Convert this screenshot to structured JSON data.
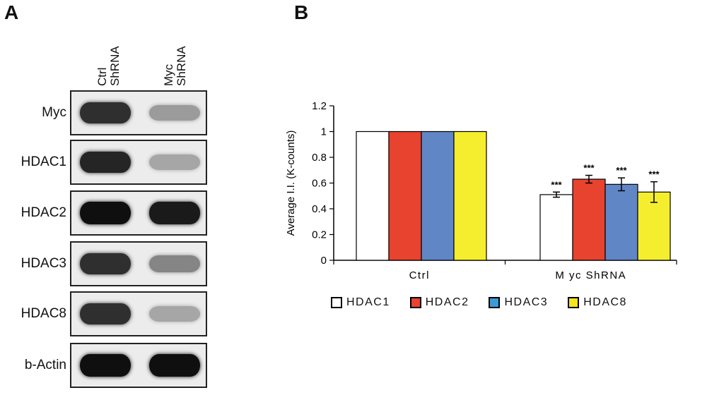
{
  "panelA": {
    "letter": "A",
    "columns": [
      {
        "line1": "Ctrl",
        "line2": "ShRNA"
      },
      {
        "line1": "Myc",
        "line2": "ShRNA"
      }
    ],
    "rows": [
      {
        "label": "Myc",
        "bands": [
          0.85,
          0.35
        ]
      },
      {
        "label": "HDAC1",
        "bands": [
          0.9,
          0.3
        ]
      },
      {
        "label": "HDAC2",
        "bands": [
          1.0,
          0.95
        ]
      },
      {
        "label": "HDAC3",
        "bands": [
          0.85,
          0.45
        ]
      },
      {
        "label": "HDAC8",
        "bands": [
          0.85,
          0.3
        ]
      },
      {
        "label": "b-Actin",
        "bands": [
          1.0,
          1.0
        ]
      }
    ]
  },
  "panelB": {
    "letter": "B",
    "legend": [
      {
        "label": "HDAC1",
        "color": "#ffffff"
      },
      {
        "label": "HDAC2",
        "color": "#e8432f"
      },
      {
        "label": "HDAC3",
        "color": "#3c9ad6"
      },
      {
        "label": "HDAC8",
        "color": "#f5e61e"
      }
    ]
  },
  "chart_data": {
    "type": "bar",
    "categories": [
      "Ctrl",
      "M yc ShRNA"
    ],
    "series": [
      {
        "name": "HDAC1",
        "values": [
          1,
          0.51
        ],
        "errors": [
          0,
          0.02
        ],
        "color": "#ffffff"
      },
      {
        "name": "HDAC2",
        "values": [
          1,
          0.63
        ],
        "errors": [
          0,
          0.03
        ],
        "color": "#e8432f"
      },
      {
        "name": "HDAC3",
        "values": [
          1,
          0.59
        ],
        "errors": [
          0,
          0.05
        ],
        "color": "#6186c6"
      },
      {
        "name": "HDAC8",
        "values": [
          1,
          0.53
        ],
        "errors": [
          0,
          0.08
        ],
        "color": "#f5ee2e"
      }
    ],
    "annotations": [
      [
        "",
        ""
      ],
      [
        "***",
        "***",
        "***",
        "***"
      ]
    ],
    "ylabel": "Average I.I. (K-counts)",
    "xlabel": "",
    "ylim": [
      0,
      1.2
    ],
    "yticks": [
      "0",
      "0.2",
      "0.4",
      "0.6",
      "0.8",
      "1",
      "1.2"
    ],
    "grid": false
  }
}
